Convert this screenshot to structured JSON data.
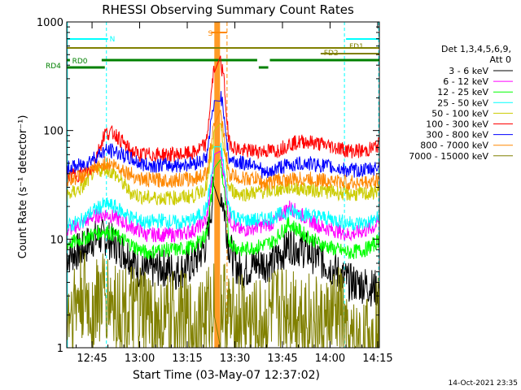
{
  "chart_data": {
    "type": "line",
    "title": "RHESSI Observing Summary Count Rates",
    "xlabel": "Start Time (03-May-07 12:37:02)",
    "ylabel": "Count Rate (s⁻¹ detector⁻¹)",
    "y_scale": "log",
    "ylim": [
      1,
      1000
    ],
    "xlim_minutes": [
      0,
      98.5
    ],
    "x_ticks": [
      "12:45",
      "13:00",
      "13:15",
      "13:30",
      "13:45",
      "14:00",
      "14:15"
    ],
    "y_ticks": [
      "1",
      "10",
      "100",
      "1000"
    ],
    "legend_header": [
      "Det 1,3,4,5,6,9,",
      "Att 0"
    ],
    "series": [
      {
        "name": "3 - 6 keV",
        "color": "#000000",
        "x": [
          0,
          5,
          8,
          12,
          15,
          20,
          23,
          25,
          30,
          35,
          40,
          44,
          46,
          47.5,
          49.5,
          51,
          53,
          55,
          60,
          65,
          70,
          75,
          80,
          85,
          87,
          89,
          94,
          97,
          98.5
        ],
        "y": [
          7,
          8,
          10,
          10.5,
          9,
          7,
          5,
          5,
          5.5,
          5,
          6,
          9,
          25,
          40,
          20,
          9,
          6,
          5,
          6,
          6,
          9,
          8,
          6.5,
          5,
          4.5,
          4,
          3.8,
          3.5,
          3.5
        ]
      },
      {
        "name": "6 - 12 keV",
        "color": "#ff00ff",
        "x": [
          0,
          5,
          8,
          12,
          15,
          20,
          23,
          25,
          30,
          35,
          40,
          44,
          46,
          47.5,
          49.5,
          51,
          53,
          55,
          60,
          65,
          70,
          75,
          80,
          85,
          89,
          94,
          97,
          98.5
        ],
        "y": [
          12,
          14,
          16,
          17,
          16,
          13,
          12,
          11,
          11,
          11,
          12,
          15,
          40,
          100,
          40,
          16,
          13,
          12,
          13,
          14,
          20,
          16,
          13,
          12,
          11,
          12,
          13,
          15
        ]
      },
      {
        "name": "12 - 25 keV",
        "color": "#00ff00",
        "x": [
          0,
          5,
          8,
          12,
          15,
          20,
          23,
          25,
          30,
          35,
          40,
          44,
          46,
          47.5,
          49.5,
          51,
          53,
          55,
          60,
          65,
          70,
          75,
          80,
          85,
          89,
          94,
          97,
          98.5
        ],
        "y": [
          9,
          10,
          11,
          12,
          11,
          9,
          8,
          7.5,
          8,
          8,
          8.5,
          11,
          30,
          80,
          30,
          10,
          8.5,
          8,
          8.5,
          9.5,
          14,
          11,
          9,
          8,
          7.5,
          8,
          9,
          10
        ]
      },
      {
        "name": "25 - 50 keV",
        "color": "#00ffff",
        "x": [
          0,
          5,
          8,
          12,
          15,
          20,
          23,
          25,
          30,
          35,
          40,
          44,
          46,
          47.5,
          49.5,
          51,
          53,
          55,
          60,
          65,
          70,
          75,
          80,
          85,
          89,
          94,
          97,
          98.5
        ],
        "y": [
          13,
          15,
          18,
          21,
          20,
          16,
          15,
          14,
          15,
          14,
          15,
          19,
          45,
          120,
          45,
          20,
          16,
          15,
          15,
          16,
          18,
          17,
          16,
          15,
          14,
          14,
          15,
          16
        ]
      },
      {
        "name": "50 - 100 keV",
        "color": "#cccc00",
        "x": [
          0,
          5,
          8,
          12,
          15,
          20,
          23,
          25,
          30,
          35,
          40,
          44,
          46,
          47.5,
          49.5,
          51,
          53,
          55,
          60,
          65,
          70,
          75,
          80,
          85,
          89,
          94,
          97,
          98.5
        ],
        "y": [
          25,
          30,
          40,
          45,
          40,
          27,
          25,
          24,
          24,
          24,
          25,
          30,
          70,
          150,
          70,
          30,
          27,
          26,
          27,
          28,
          30,
          29,
          28,
          27,
          26,
          26,
          27,
          29
        ]
      },
      {
        "name": "100 - 300 keV",
        "color": "#ff0000",
        "x": [
          0,
          5,
          8,
          12,
          15,
          20,
          23,
          25,
          30,
          35,
          40,
          44,
          46,
          47.5,
          49.5,
          51,
          53,
          55,
          60,
          63,
          65,
          66,
          70,
          75,
          80,
          85,
          89,
          94,
          97,
          98.5
        ],
        "y": [
          38,
          40,
          45,
          95,
          95,
          65,
          60,
          60,
          60,
          60,
          62,
          75,
          300,
          600,
          300,
          80,
          70,
          65,
          65,
          65,
          65,
          65,
          75,
          80,
          75,
          70,
          65,
          65,
          70,
          75
        ]
      },
      {
        "name": "300 - 800 keV",
        "color": "#0000ff",
        "x": [
          0,
          5,
          8,
          12,
          15,
          20,
          23,
          25,
          30,
          35,
          40,
          44,
          46,
          47.5,
          49.5,
          51,
          53,
          55,
          60,
          62,
          64,
          66,
          70,
          75,
          80,
          85,
          89,
          94,
          97,
          98.5
        ],
        "y": [
          45,
          48,
          55,
          65,
          65,
          55,
          50,
          48,
          48,
          48,
          50,
          55,
          150,
          300,
          150,
          55,
          52,
          50,
          50,
          40,
          40,
          45,
          48,
          50,
          48,
          45,
          43,
          43,
          45,
          48
        ]
      },
      {
        "name": "800 - 7000 keV",
        "color": "#ff8800",
        "x": [
          0,
          5,
          8,
          12,
          15,
          20,
          23,
          25,
          30,
          35,
          40,
          44,
          46,
          47.5,
          49.5,
          51,
          53,
          55,
          60,
          62,
          64,
          66,
          70,
          75,
          80,
          85,
          89,
          94,
          97,
          98.5
        ],
        "y": [
          35,
          38,
          42,
          50,
          48,
          40,
          36,
          35,
          35,
          35,
          36,
          40,
          90,
          200,
          90,
          40,
          38,
          36,
          36,
          32,
          33,
          35,
          35,
          36,
          35,
          34,
          33,
          33,
          34,
          36
        ]
      },
      {
        "name": "7000 - 15000 keV",
        "color": "#808000",
        "x": [
          0,
          3,
          5,
          8,
          10,
          15,
          20,
          25,
          30,
          35,
          40,
          44,
          46,
          47.5,
          49.5,
          51,
          53,
          55,
          60,
          65,
          70,
          75,
          80,
          85,
          87,
          88,
          89,
          94,
          97,
          98.5
        ],
        "y": [
          2,
          2.5,
          3,
          2,
          3,
          2.5,
          2,
          2,
          1.5,
          2,
          1.5,
          2,
          2.5,
          3,
          2.5,
          2,
          1.5,
          2,
          1.5,
          2,
          2.5,
          2,
          1.5,
          2,
          2,
          1,
          1,
          1,
          1.5,
          2
        ]
      }
    ],
    "annotations": {
      "flags": [
        {
          "label": "N",
          "color": "#00ffff"
        },
        {
          "label": "S",
          "color": "#ff8800"
        },
        {
          "label": "FD1",
          "color": "#808000"
        },
        {
          "label": "FD2",
          "color": "#808000"
        },
        {
          "label": "RD0",
          "color": "#008000"
        },
        {
          "label": "RD4",
          "color": "#008000"
        }
      ]
    },
    "grid": false,
    "legend_position": "right"
  },
  "footer": {
    "timestamp": "14-Oct-2021 23:35"
  }
}
